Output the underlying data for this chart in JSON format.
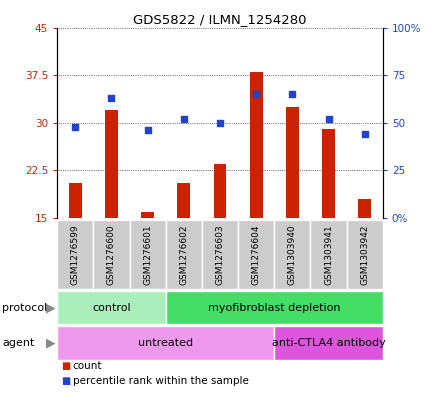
{
  "title": "GDS5822 / ILMN_1254280",
  "samples": [
    "GSM1276599",
    "GSM1276600",
    "GSM1276601",
    "GSM1276602",
    "GSM1276603",
    "GSM1276604",
    "GSM1303940",
    "GSM1303941",
    "GSM1303942"
  ],
  "counts": [
    20.5,
    32.0,
    16.0,
    20.5,
    23.5,
    38.0,
    32.5,
    29.0,
    18.0
  ],
  "percentiles": [
    48,
    63,
    46,
    52,
    50,
    65,
    65,
    52,
    44
  ],
  "ylim_left": [
    15,
    45
  ],
  "ylim_right": [
    0,
    100
  ],
  "yticks_left": [
    15,
    22.5,
    30,
    37.5,
    45
  ],
  "yticks_right": [
    0,
    25,
    50,
    75,
    100
  ],
  "ytick_labels_left": [
    "15",
    "22.5",
    "30",
    "37.5",
    "45"
  ],
  "ytick_labels_right": [
    "0%",
    "25",
    "50",
    "75",
    "100%"
  ],
  "bar_color": "#cc2200",
  "dot_color": "#2244cc",
  "bar_bottom": 15,
  "protocol_groups": [
    {
      "label": "control",
      "start": 0,
      "end": 3,
      "color": "#aaeebb"
    },
    {
      "label": "myofibroblast depletion",
      "start": 3,
      "end": 9,
      "color": "#44dd66"
    }
  ],
  "agent_groups": [
    {
      "label": "untreated",
      "start": 0,
      "end": 6,
      "color": "#ee99ee"
    },
    {
      "label": "anti-CTLA4 antibody",
      "start": 6,
      "end": 9,
      "color": "#dd55dd"
    }
  ],
  "legend_items": [
    {
      "label": "count",
      "color": "#cc2200"
    },
    {
      "label": "percentile rank within the sample",
      "color": "#2244cc"
    }
  ],
  "grid_color": "black",
  "background_color": "white",
  "left_axis_color": "#cc2200",
  "right_axis_color": "#2244cc",
  "sample_box_color": "#cccccc",
  "arrow_color": "#888888"
}
